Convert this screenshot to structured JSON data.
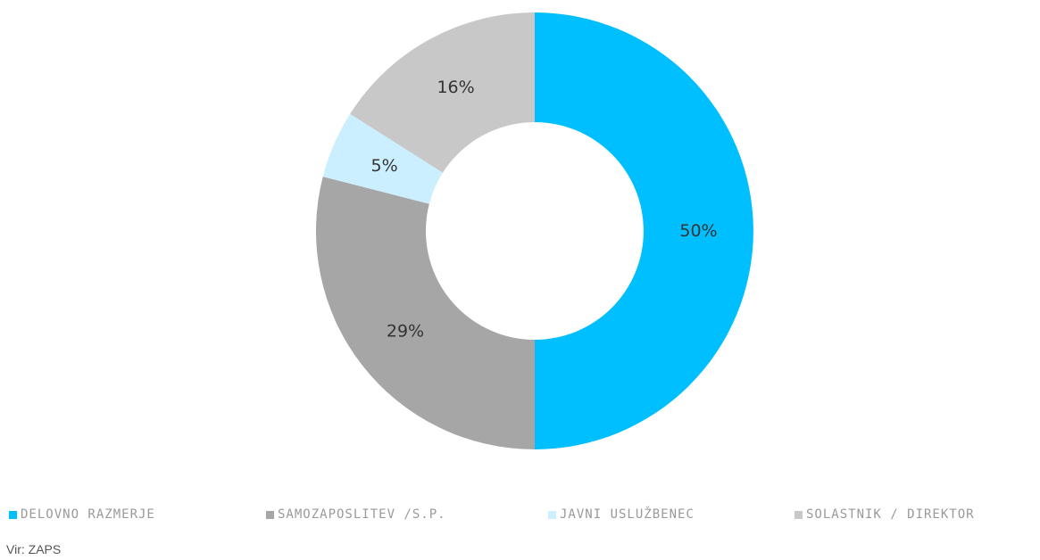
{
  "chart_data": {
    "type": "pie",
    "variant": "donut",
    "title": "",
    "categories": [
      "DELOVNO RAZMERJE",
      "SAMOZAPOSLITEV /S.P.",
      "JAVNI USLUŽBENEC",
      "SOLASTNIK / DIREKTOR"
    ],
    "values": [
      50,
      29,
      5,
      16
    ],
    "value_labels": [
      "50%",
      "29%",
      "5%",
      "16%"
    ],
    "unit": "%",
    "colors": [
      "#00bfff",
      "#a6a6a6",
      "#ccefff",
      "#c8c8c8"
    ],
    "legend_placement": "bottom"
  },
  "legend": {
    "items": [
      {
        "label": "DELOVNO RAZMERJE",
        "color": "#00bfff"
      },
      {
        "label": "SAMOZAPOSLITEV /S.P.",
        "color": "#a6a6a6"
      },
      {
        "label": "JAVNI USLUŽBENEC",
        "color": "#ccefff"
      },
      {
        "label": "SOLASTNIK / DIREKTOR",
        "color": "#c8c8c8"
      }
    ]
  },
  "source": {
    "text": "Vir: ZAPS"
  }
}
